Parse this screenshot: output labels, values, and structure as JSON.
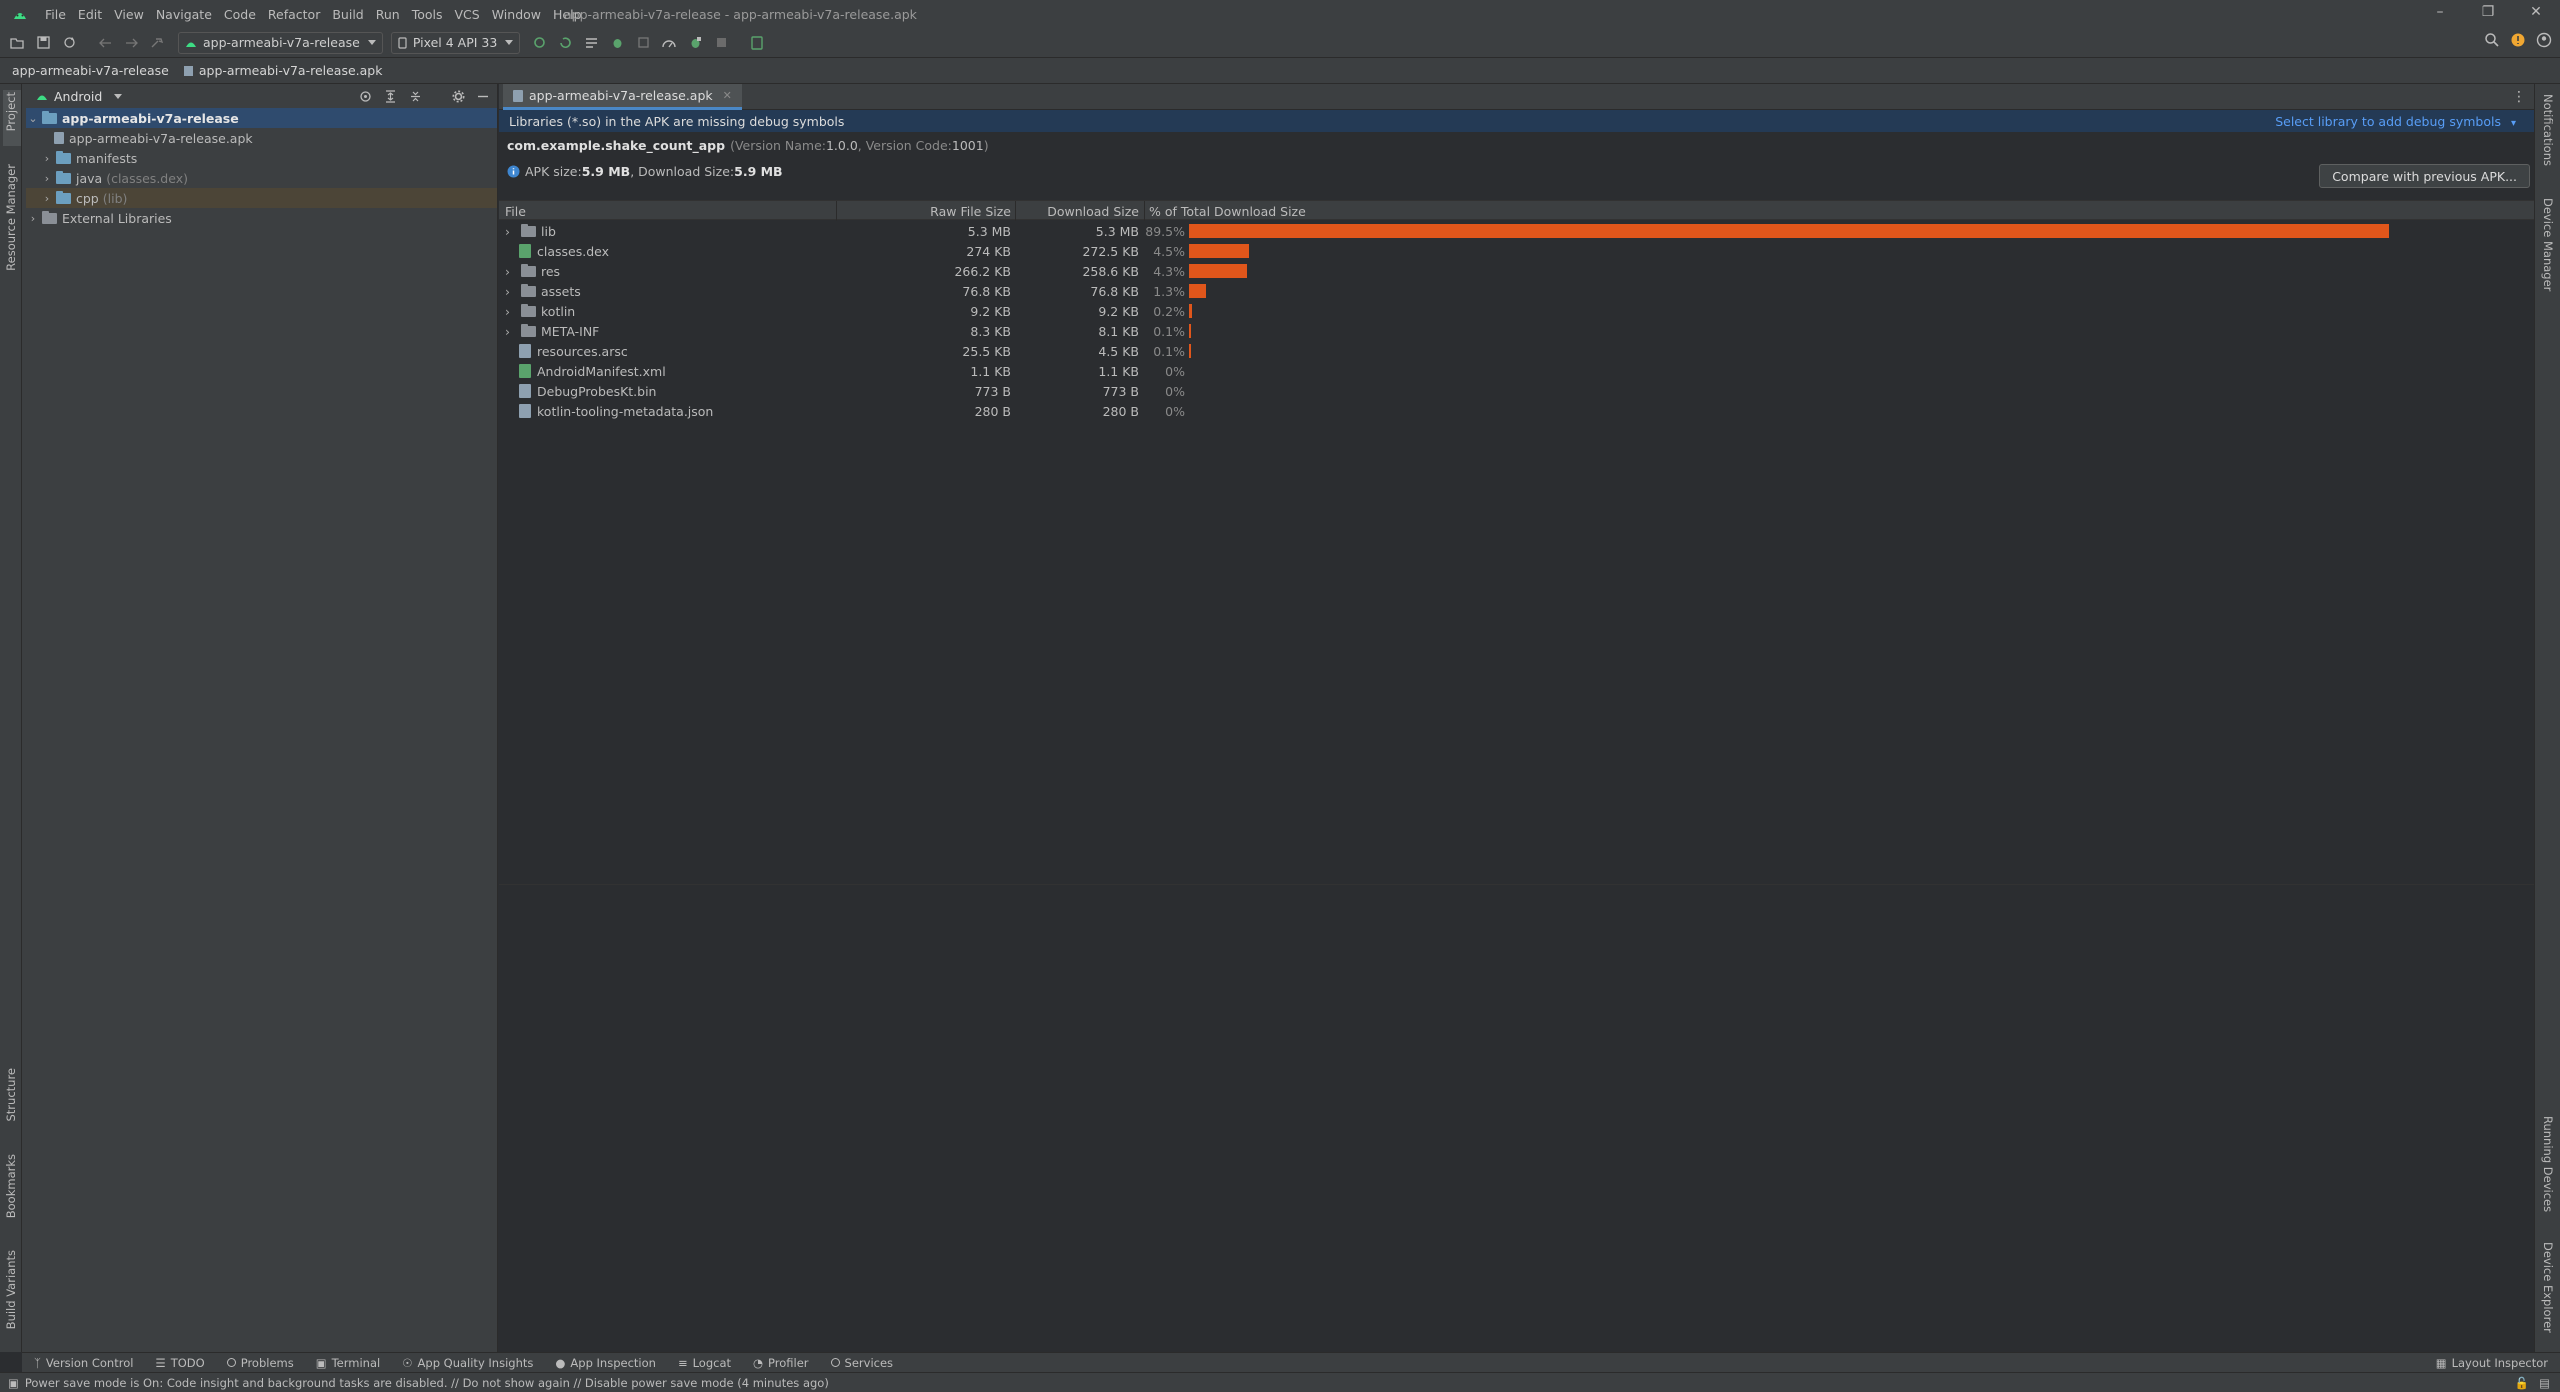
{
  "window": {
    "title": "app-armeabi-v7a-release - app-armeabi-v7a-release.apk",
    "menu": [
      "File",
      "Edit",
      "View",
      "Navigate",
      "Code",
      "Refactor",
      "Build",
      "Run",
      "Tools",
      "VCS",
      "Window",
      "Help"
    ]
  },
  "toolbar": {
    "run_config": "app-armeabi-v7a-release",
    "device": "Pixel 4 API 33"
  },
  "breadcrumb": {
    "project": "app-armeabi-v7a-release",
    "file": "app-armeabi-v7a-release.apk"
  },
  "left_stripe": {
    "project": "Project",
    "resource_manager": "Resource Manager",
    "structure": "Structure",
    "bookmarks": "Bookmarks",
    "build_variants": "Build Variants"
  },
  "right_stripe": {
    "notifications": "Notifications",
    "device_manager": "Device Manager",
    "running_devices": "Running Devices",
    "device_explorer": "Device Explorer"
  },
  "project_panel": {
    "view_mode": "Android",
    "tree": [
      {
        "label": "app-armeabi-v7a-release",
        "note": ""
      },
      {
        "label": "app-armeabi-v7a-release.apk",
        "note": ""
      },
      {
        "label": "manifests",
        "note": ""
      },
      {
        "label": "java",
        "note": "(classes.dex)"
      },
      {
        "label": "cpp",
        "note": "(lib)"
      },
      {
        "label": "External Libraries",
        "note": ""
      }
    ]
  },
  "editor": {
    "tab": "app-armeabi-v7a-release.apk",
    "banner": "Libraries (*.so) in the APK are missing debug symbols",
    "banner_link": "Select library to add debug symbols",
    "package": "com.example.shake_count_app",
    "version_name_label": "(Version Name: ",
    "version_name": "1.0.0",
    "version_code_label": ", Version Code: ",
    "version_code": "1001",
    "version_close": ")",
    "apk_size_label": "APK size: ",
    "apk_size": "5.9 MB",
    "download_size_label": ", Download Size: ",
    "download_size": "5.9 MB",
    "compare_button": "Compare with previous APK..."
  },
  "table": {
    "headers": [
      "File",
      "Raw File Size",
      "Download Size",
      "% of Total Download Size"
    ],
    "rows": [
      {
        "name": "lib",
        "raw": "5.3 MB",
        "download": "5.3 MB",
        "pct": "89.5%",
        "share": 89.5,
        "kind": "folder",
        "expandable": true
      },
      {
        "name": "classes.dex",
        "raw": "274 KB",
        "download": "272.5 KB",
        "pct": "4.5%",
        "share": 4.5,
        "kind": "dex",
        "expandable": false
      },
      {
        "name": "res",
        "raw": "266.2 KB",
        "download": "258.6 KB",
        "pct": "4.3%",
        "share": 4.3,
        "kind": "folder",
        "expandable": true
      },
      {
        "name": "assets",
        "raw": "76.8 KB",
        "download": "76.8 KB",
        "pct": "1.3%",
        "share": 1.3,
        "kind": "folder",
        "expandable": true
      },
      {
        "name": "kotlin",
        "raw": "9.2 KB",
        "download": "9.2 KB",
        "pct": "0.2%",
        "share": 0.2,
        "kind": "folder",
        "expandable": true
      },
      {
        "name": "META-INF",
        "raw": "8.3 KB",
        "download": "8.1 KB",
        "pct": "0.1%",
        "share": 0.1,
        "kind": "folder",
        "expandable": true
      },
      {
        "name": "resources.arsc",
        "raw": "25.5 KB",
        "download": "4.5 KB",
        "pct": "0.1%",
        "share": 0.1,
        "kind": "file",
        "expandable": false
      },
      {
        "name": "AndroidManifest.xml",
        "raw": "1.1 KB",
        "download": "1.1 KB",
        "pct": "0%",
        "share": 0,
        "kind": "xml",
        "expandable": false
      },
      {
        "name": "DebugProbesKt.bin",
        "raw": "773 B",
        "download": "773 B",
        "pct": "0%",
        "share": 0,
        "kind": "file",
        "expandable": false
      },
      {
        "name": "kotlin-tooling-metadata.json",
        "raw": "280 B",
        "download": "280 B",
        "pct": "0%",
        "share": 0,
        "kind": "file",
        "expandable": false
      }
    ]
  },
  "tool_windows": [
    "Version Control",
    "TODO",
    "Problems",
    "Terminal",
    "App Quality Insights",
    "App Inspection",
    "Logcat",
    "Profiler",
    "Services"
  ],
  "layout_inspector": "Layout Inspector",
  "status": "Power save mode is On: Code insight and background tasks are disabled. // Do not show again // Disable power save mode (4 minutes ago)",
  "colors": {
    "bar": "#e0561b",
    "link": "#589df6",
    "selection": "#2f4b6e"
  }
}
